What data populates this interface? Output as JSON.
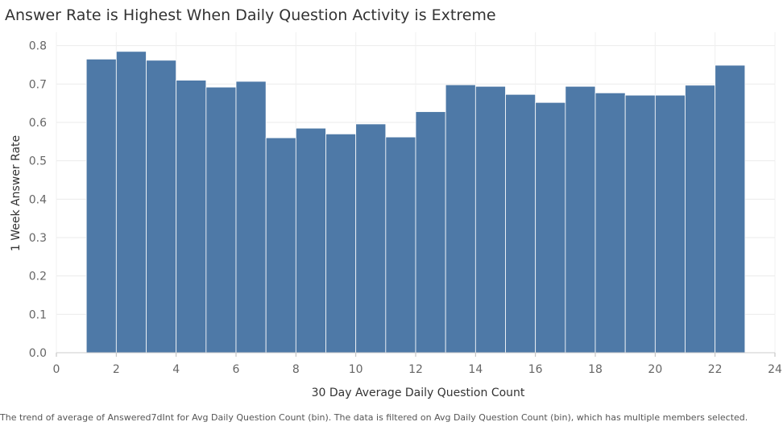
{
  "chart_data": {
    "type": "bar",
    "title": "Answer Rate is Highest When Daily Question Activity is Extreme",
    "xlabel": "30 Day Average Daily Question Count",
    "ylabel": "1 Week Answer Rate",
    "caption": "The trend of average of Answered7dInt for Avg Daily Question Count (bin). The data is filtered on Avg Daily Question Count (bin), which has multiple members selected.",
    "xlim": [
      0,
      24
    ],
    "ylim": [
      0.0,
      0.8
    ],
    "xticks": [
      "0",
      "2",
      "4",
      "6",
      "8",
      "10",
      "12",
      "14",
      "16",
      "18",
      "20",
      "22",
      "24"
    ],
    "yticks": [
      "0.0",
      "0.1",
      "0.2",
      "0.3",
      "0.4",
      "0.5",
      "0.6",
      "0.7",
      "0.8"
    ],
    "bin_width": 1,
    "x": [
      1,
      2,
      3,
      4,
      5,
      6,
      7,
      8,
      9,
      10,
      11,
      12,
      13,
      14,
      15,
      16,
      17,
      18,
      19,
      20,
      21,
      22
    ],
    "values": [
      0.765,
      0.785,
      0.762,
      0.71,
      0.692,
      0.707,
      0.56,
      0.585,
      0.57,
      0.596,
      0.562,
      0.628,
      0.698,
      0.694,
      0.673,
      0.652,
      0.694,
      0.677,
      0.671,
      0.671,
      0.697,
      0.749
    ],
    "bar_color": "#4e79a7",
    "grid": true
  }
}
